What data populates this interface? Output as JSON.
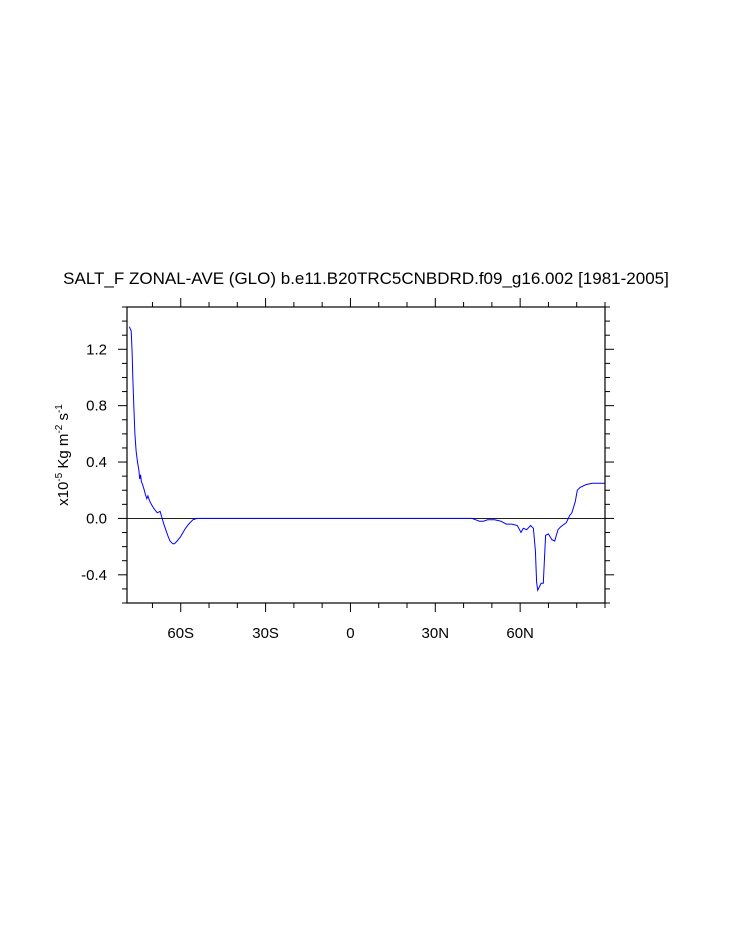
{
  "chart_data": {
    "type": "line",
    "title": "SALT_F ZONAL-AVE (GLO) b.e11.B20TRC5CNBDRD.f09_g16.002 [1981-2005]",
    "ylabel": {
      "prefix": "x10",
      "exp1": "-5",
      "mid": " Kg m",
      "exp2": "-2",
      "mid2": " s",
      "exp3": "-1"
    },
    "xlim": [
      -79,
      90
    ],
    "ylim": [
      -0.6,
      1.5
    ],
    "x_ticks": [
      {
        "value": -60,
        "label": "60S"
      },
      {
        "value": -30,
        "label": "30S"
      },
      {
        "value": 0,
        "label": "0"
      },
      {
        "value": 30,
        "label": "30N"
      },
      {
        "value": 60,
        "label": "60N"
      }
    ],
    "y_ticks": [
      {
        "value": -0.4,
        "label": "-0.4"
      },
      {
        "value": 0.0,
        "label": "0.0"
      },
      {
        "value": 0.4,
        "label": "0.4"
      },
      {
        "value": 0.8,
        "label": "0.8"
      },
      {
        "value": 1.2,
        "label": "1.2"
      }
    ],
    "reference_line": 0.0,
    "grid": false,
    "line_color": "#0000ff",
    "series": [
      {
        "x": [
          -78.2,
          -77.5,
          -77.2,
          -76.9,
          -76.6,
          -76.2,
          -75.8,
          -75.3,
          -74.8,
          -74.5,
          -74.2,
          -73.9,
          -73.5,
          -73.2,
          -72.9,
          -72.5,
          -72.0,
          -71.6,
          -71.1,
          -70.4,
          -69.5,
          -68.3,
          -67.3,
          -66.0,
          -64.6,
          -63.8,
          -62.8,
          -62.2,
          -61.3,
          -60.1,
          -58.3,
          -57.2,
          -55.7,
          -54.2,
          -52.1,
          -50.0,
          -45.0,
          -30.0,
          -15.0,
          0.0,
          15.0,
          30.0,
          40.0,
          43.0,
          44.3,
          45.6,
          47.0,
          48.5,
          51.0,
          53.2,
          55.1,
          57.0,
          59.0,
          60.3,
          61.1,
          62.3,
          63.7,
          64.7,
          65.4,
          65.8,
          66.2,
          67.4,
          68.2,
          69.0,
          70.0,
          71.2,
          72.2,
          73.4,
          74.3,
          75.6,
          76.3,
          77.5,
          78.3,
          79.5,
          80.2,
          81.2,
          82.3,
          83.3,
          85.5,
          87.5,
          90.0
        ],
        "y": [
          1.36,
          1.33,
          1.18,
          0.98,
          0.8,
          0.6,
          0.48,
          0.4,
          0.34,
          0.28,
          0.31,
          0.26,
          0.24,
          0.22,
          0.2,
          0.17,
          0.14,
          0.16,
          0.13,
          0.1,
          0.07,
          0.04,
          0.05,
          -0.04,
          -0.12,
          -0.16,
          -0.18,
          -0.18,
          -0.16,
          -0.13,
          -0.07,
          -0.04,
          -0.01,
          0.0,
          0.0,
          0.0,
          0.0,
          0.0,
          0.0,
          0.0,
          0.0,
          0.0,
          0.0,
          0.0,
          -0.01,
          -0.02,
          -0.02,
          -0.01,
          -0.01,
          -0.02,
          -0.04,
          -0.04,
          -0.05,
          -0.1,
          -0.07,
          -0.08,
          -0.05,
          -0.07,
          -0.23,
          -0.45,
          -0.51,
          -0.46,
          -0.46,
          -0.12,
          -0.11,
          -0.15,
          -0.16,
          -0.08,
          -0.06,
          -0.04,
          -0.03,
          0.02,
          0.04,
          0.12,
          0.2,
          0.22,
          0.23,
          0.24,
          0.25,
          0.25,
          0.25
        ]
      }
    ]
  }
}
